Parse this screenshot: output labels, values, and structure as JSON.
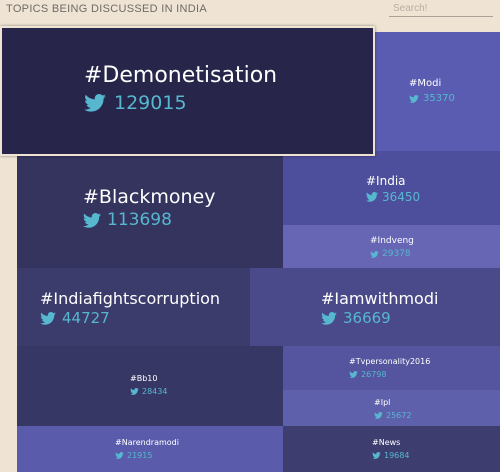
{
  "header": {
    "title": "TOPICS BEING DISCUSSED IN INDIA",
    "search_placeholder": "Search!"
  },
  "topics": [
    {
      "tag": "#Demonetisation",
      "count": "129015",
      "color": "#27264a"
    },
    {
      "tag": "#Blackmoney",
      "count": "113698",
      "color": "#34345f"
    },
    {
      "tag": "#Indiafightscorruption",
      "count": "44727",
      "color": "#3b3b6c"
    },
    {
      "tag": "#Iamwithmodi",
      "count": "36669",
      "color": "#4a4a8a"
    },
    {
      "tag": "#India",
      "count": "36450",
      "color": "#4e4f9c"
    },
    {
      "tag": "#Modi",
      "count": "35370",
      "color": "#5a5cb2"
    },
    {
      "tag": "#Bb10",
      "count": "28434",
      "color": "#373766"
    },
    {
      "tag": "#Indveng",
      "count": "29378",
      "color": "#6666b4"
    },
    {
      "tag": "#Tvpersonality2016",
      "count": "26798",
      "color": "#54559e"
    },
    {
      "tag": "#Ipl",
      "count": "25672",
      "color": "#5f60ac"
    },
    {
      "tag": "#Narendramodi",
      "count": "21915",
      "color": "#5a5bab"
    },
    {
      "tag": "#News",
      "count": "19684",
      "color": "#3d3d70"
    }
  ],
  "twitter_icon_color": "#56b7cf"
}
